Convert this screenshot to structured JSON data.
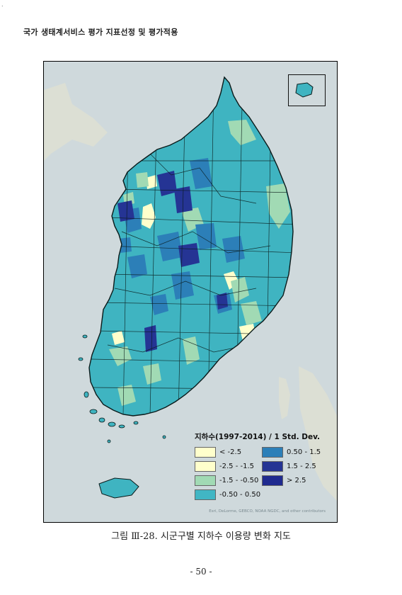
{
  "page": {
    "corner_mark": ".",
    "running_header": "국가 생태계서비스 평가 지표선정 및 평가적용",
    "caption": "그림 Ⅲ-28. 시군구별 지하수 이용량 변화 지도",
    "page_number": "- 50 -"
  },
  "map": {
    "legend_title": "지하수(1997-2014) / 1 Std. Dev.",
    "legend_items": [
      {
        "label": "< -2.5",
        "color": "#ffffcc"
      },
      {
        "label": "0.50 - 1.5",
        "color": "#2c7fb8"
      },
      {
        "label": "-2.5 - -1.5",
        "color": "#ffffcc"
      },
      {
        "label": "1.5 - 2.5",
        "color": "#253494"
      },
      {
        "label": "-1.5 - -0.50",
        "color": "#a1dab4"
      },
      {
        "label": "> 2.5",
        "color": "#1f2a8f"
      },
      {
        "label": "-0.50 - 0.50",
        "color": "#41b6c4"
      }
    ],
    "attribution": "Esri, DeLorme, GEBCO, NOAA NGDC, and other contributors",
    "colors": {
      "sea": "#cdd7da",
      "land_background": "#d9dcd3",
      "base_class": "#3fb4c1",
      "border": "#0a1a1a"
    }
  }
}
